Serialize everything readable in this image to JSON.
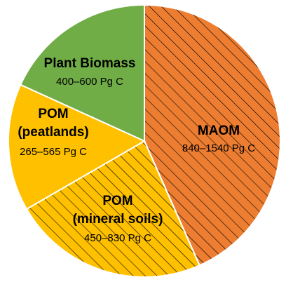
{
  "chart_data": {
    "type": "pie",
    "title": "",
    "slices": [
      {
        "name": "MAOM",
        "value_text": "840–1540 Pg C",
        "value": 1190,
        "color": "#ED7D31",
        "hatched": true
      },
      {
        "name": "POM\n(mineral soils)",
        "value_text": "450–830 Pg C",
        "value": 640,
        "color": "#FFC000",
        "hatched": true
      },
      {
        "name": "POM\n(peatlands)",
        "value_text": "265–565 Pg C",
        "value": 415,
        "color": "#FFC000",
        "hatched": false
      },
      {
        "name": "Plant Biomass",
        "value_text": "400–600 Pg C",
        "value": 500,
        "color": "#70AD47",
        "hatched": false
      }
    ]
  },
  "labels": {
    "maom": {
      "name": "MAOM",
      "value": "840–1540 Pg C"
    },
    "pom_mineral": {
      "name1": "POM",
      "name2": "(mineral soils)",
      "value": "450–830 Pg C"
    },
    "pom_peat": {
      "name1": "POM",
      "name2": "(peatlands)",
      "value": "265–565 Pg C"
    },
    "plant": {
      "name": "Plant Biomass",
      "value": "400–600 Pg C"
    }
  }
}
